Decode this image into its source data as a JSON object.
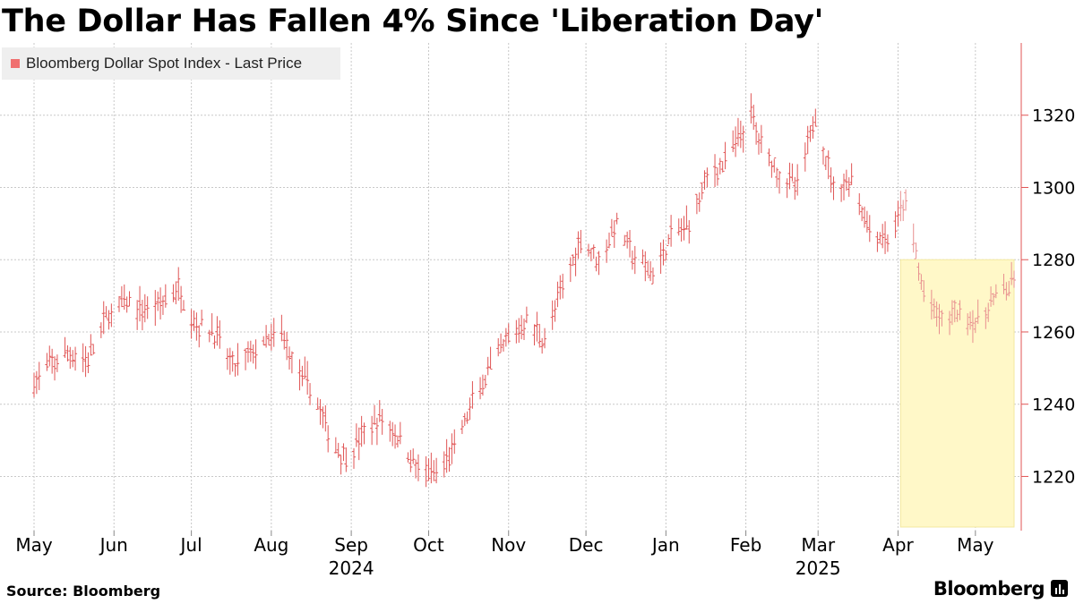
{
  "title": "The Dollar Has Fallen 4% Since 'Liberation Day'",
  "source": "Source: Bloomberg",
  "brand": "Bloomberg",
  "colors": {
    "series": "#e05555",
    "highlight": "#fff8c8",
    "highlight_border": "#f3e9a0",
    "grid": "#c8c8c8"
  },
  "chart_data": {
    "type": "line",
    "ylim": [
      1205,
      1340
    ],
    "yticks": [
      1220,
      1240,
      1260,
      1280,
      1300,
      1320
    ],
    "ytick_labels": [
      "1220",
      "1240",
      "1260",
      "1280",
      "1300",
      "1320"
    ],
    "x_range": [
      "2024-05-01",
      "2025-05-16"
    ],
    "xticks": [
      {
        "date": "2024-05-01",
        "label": "May"
      },
      {
        "date": "2024-06-01",
        "label": "Jun"
      },
      {
        "date": "2024-07-01",
        "label": "Jul"
      },
      {
        "date": "2024-08-01",
        "label": "Aug"
      },
      {
        "date": "2024-09-01",
        "label": "Sep"
      },
      {
        "date": "2024-10-01",
        "label": "Oct"
      },
      {
        "date": "2024-11-01",
        "label": "Nov"
      },
      {
        "date": "2024-12-01",
        "label": "Dec"
      },
      {
        "date": "2025-01-01",
        "label": "Jan"
      },
      {
        "date": "2025-02-01",
        "label": "Feb"
      },
      {
        "date": "2025-03-01",
        "label": "Mar"
      },
      {
        "date": "2025-04-01",
        "label": "Apr"
      },
      {
        "date": "2025-05-01",
        "label": "May"
      }
    ],
    "year_labels": [
      {
        "date": "2024-09-01",
        "label": "2024"
      },
      {
        "date": "2025-03-01",
        "label": "2025"
      }
    ],
    "highlight": {
      "x_start": "2025-04-02",
      "x_end": "2025-05-16",
      "y_range": [
        1206,
        1280
      ]
    },
    "series": [
      {
        "name": "Bloomberg Dollar Spot Index - Last Price",
        "points": [
          [
            "2024-05-01",
            1246
          ],
          [
            "2024-05-08",
            1251
          ],
          [
            "2024-05-15",
            1254
          ],
          [
            "2024-05-22",
            1252
          ],
          [
            "2024-05-29",
            1264
          ],
          [
            "2024-06-05",
            1268
          ],
          [
            "2024-06-12",
            1266
          ],
          [
            "2024-06-19",
            1268
          ],
          [
            "2024-06-26",
            1272
          ],
          [
            "2024-07-03",
            1262
          ],
          [
            "2024-07-10",
            1260
          ],
          [
            "2024-07-17",
            1250
          ],
          [
            "2024-07-24",
            1254
          ],
          [
            "2024-07-31",
            1257
          ],
          [
            "2024-08-05",
            1260
          ],
          [
            "2024-08-10",
            1250
          ],
          [
            "2024-08-17",
            1244
          ],
          [
            "2024-08-24",
            1230
          ],
          [
            "2024-08-30",
            1225
          ],
          [
            "2024-09-06",
            1232
          ],
          [
            "2024-09-13",
            1236
          ],
          [
            "2024-09-20",
            1230
          ],
          [
            "2024-09-27",
            1222
          ],
          [
            "2024-10-04",
            1220
          ],
          [
            "2024-10-11",
            1228
          ],
          [
            "2024-10-18",
            1240
          ],
          [
            "2024-10-25",
            1250
          ],
          [
            "2024-11-01",
            1258
          ],
          [
            "2024-11-08",
            1263
          ],
          [
            "2024-11-15",
            1258
          ],
          [
            "2024-11-22",
            1272
          ],
          [
            "2024-11-29",
            1286
          ],
          [
            "2024-12-06",
            1280
          ],
          [
            "2024-12-13",
            1290
          ],
          [
            "2024-12-20",
            1280
          ],
          [
            "2024-12-27",
            1276
          ],
          [
            "2025-01-03",
            1286
          ],
          [
            "2025-01-10",
            1290
          ],
          [
            "2025-01-17",
            1303
          ],
          [
            "2025-01-24",
            1307
          ],
          [
            "2025-01-31",
            1316
          ],
          [
            "2025-02-03",
            1320
          ],
          [
            "2025-02-07",
            1312
          ],
          [
            "2025-02-14",
            1304
          ],
          [
            "2025-02-21",
            1300
          ],
          [
            "2025-02-28",
            1320
          ],
          [
            "2025-03-07",
            1300
          ],
          [
            "2025-03-14",
            1302
          ],
          [
            "2025-03-21",
            1288
          ],
          [
            "2025-03-28",
            1285
          ],
          [
            "2025-04-04",
            1296
          ],
          [
            "2025-04-11",
            1270
          ],
          [
            "2025-04-18",
            1263
          ],
          [
            "2025-04-25",
            1266
          ],
          [
            "2025-05-02",
            1262
          ],
          [
            "2025-05-09",
            1270
          ],
          [
            "2025-05-16",
            1273
          ]
        ]
      }
    ]
  }
}
